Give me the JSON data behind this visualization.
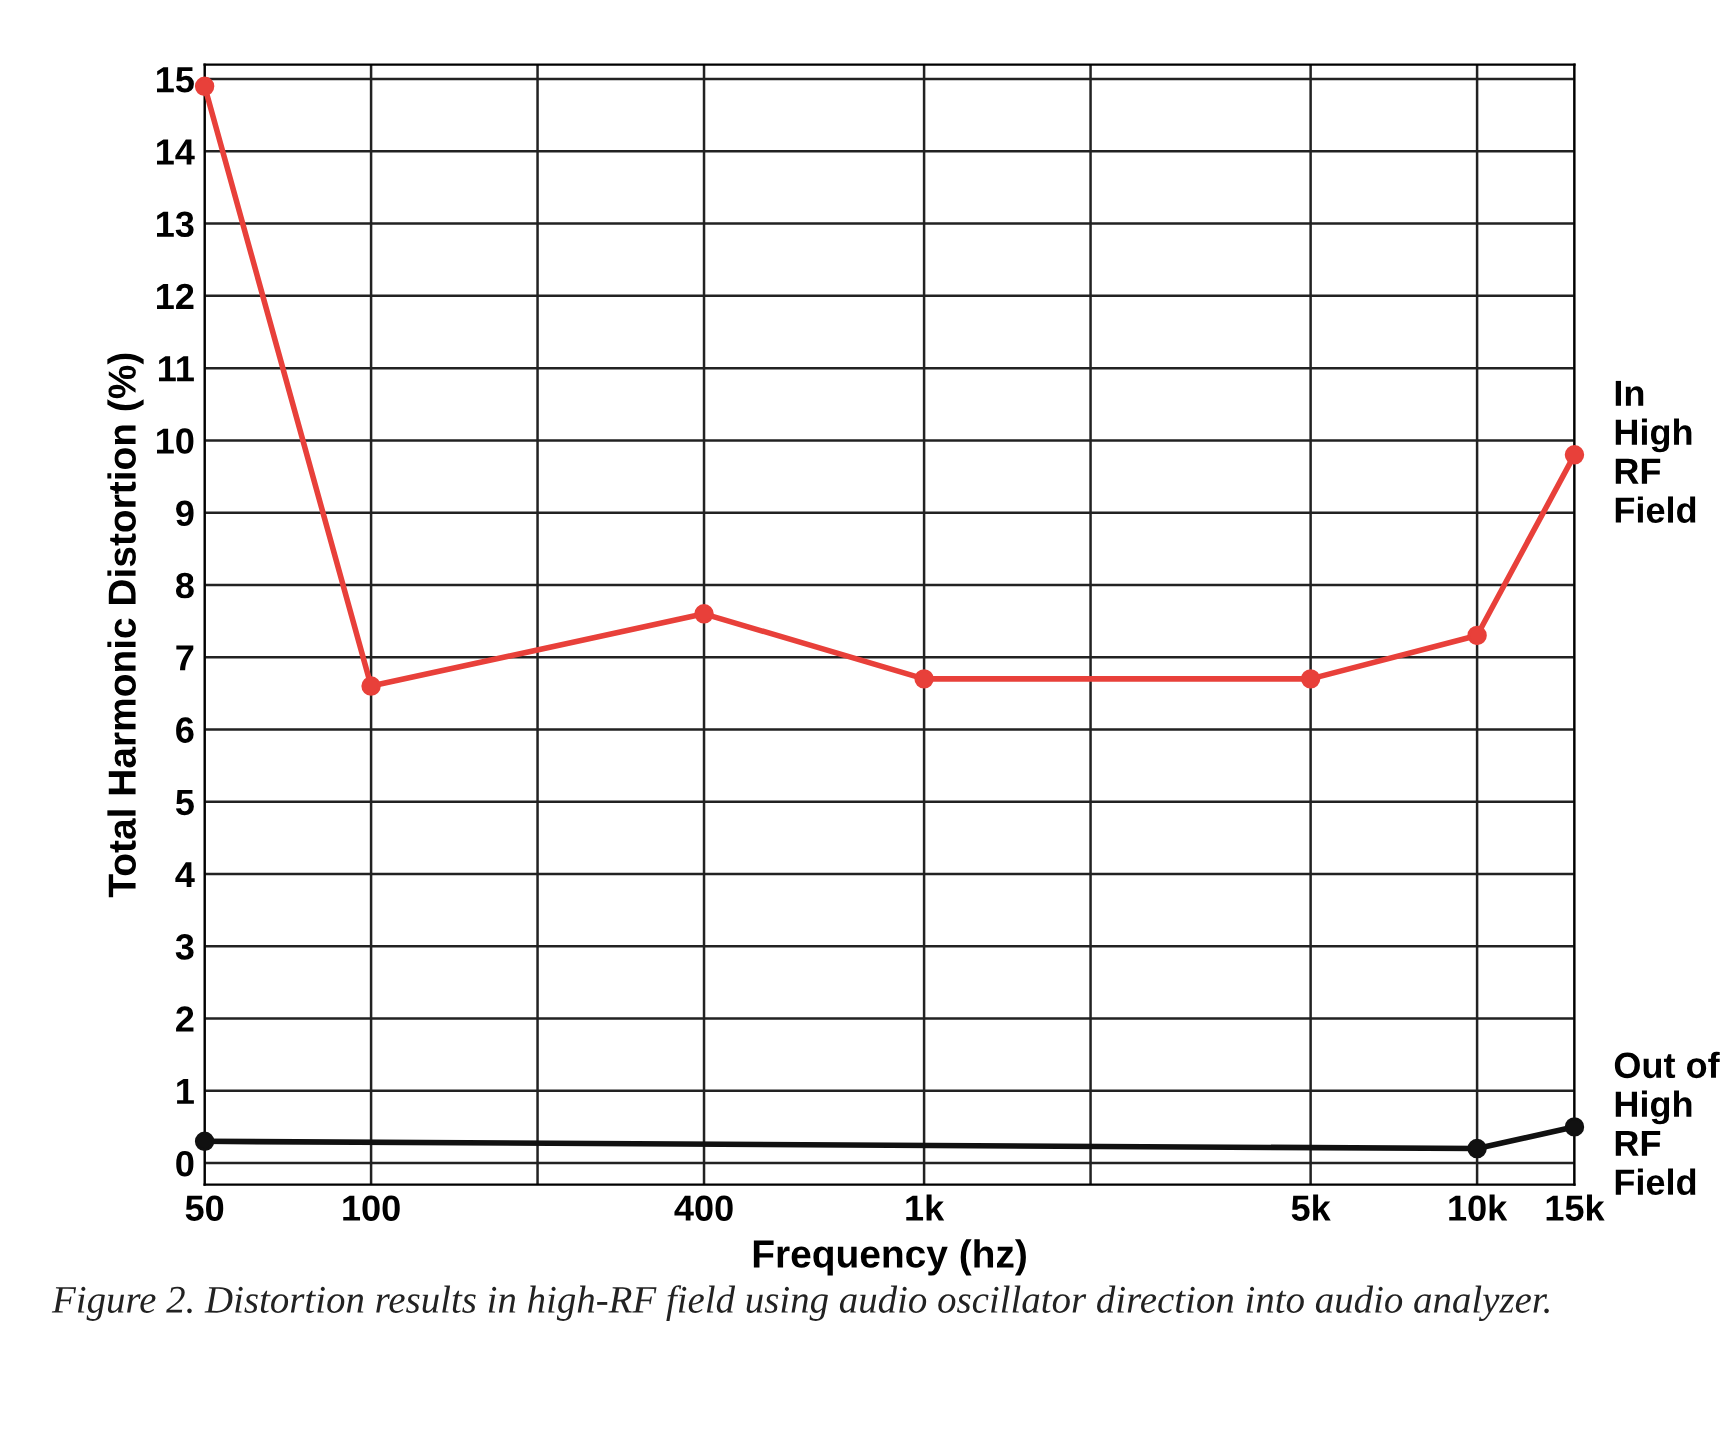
{
  "chart_data": {
    "type": "line",
    "xlabel": "Frequency (hz)",
    "ylabel": "Total Harmonic Distortion (%)",
    "log": "x",
    "xlim": [
      50,
      15000
    ],
    "xticks": [
      50,
      100,
      {
        "value": 200,
        "label": null
      },
      400,
      {
        "value": 1000,
        "label": "1k"
      },
      {
        "value": 2000,
        "label": null
      },
      {
        "value": 5000,
        "label": "5k"
      },
      {
        "value": 10000,
        "label": "10k"
      },
      {
        "value": 15000,
        "label": "15k"
      }
    ],
    "ylim": [
      -0.3,
      15.2
    ],
    "yticks": [
      0,
      1,
      2,
      3,
      4,
      5,
      6,
      7,
      8,
      9,
      10,
      11,
      12,
      13,
      14,
      15
    ],
    "grid": true,
    "marker": "circle",
    "line_style": "solid",
    "legend": false,
    "series": [
      {
        "name": "In\nHigh\nRF\nField",
        "color": "#e8403a",
        "x": [
          50,
          100,
          400,
          1000,
          5000,
          10000,
          15000
        ],
        "values": [
          14.9,
          6.6,
          7.6,
          6.7,
          6.7,
          7.3,
          9.8
        ]
      },
      {
        "name": "Out of\nHigh\nRF\nField",
        "color": "#111111",
        "x": [
          50,
          10000,
          15000
        ],
        "values": [
          0.3,
          0.2,
          0.5
        ]
      }
    ],
    "annotations": [
      "Figure 2. Distortion results in high-RF field using audio oscillator direction into audio analyzer."
    ]
  }
}
